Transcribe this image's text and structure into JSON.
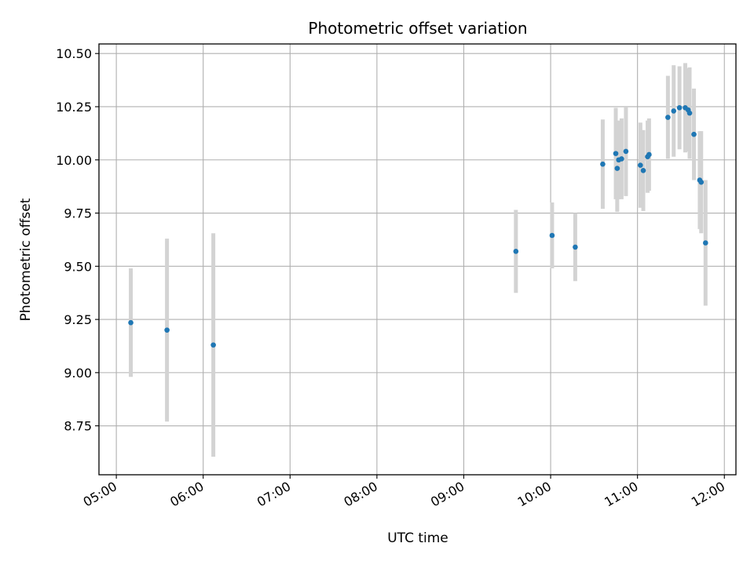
{
  "chart_data": {
    "type": "scatter",
    "title": "Photometric offset variation",
    "xlabel": "UTC time",
    "ylabel": "Photometric offset",
    "x_axis": "time",
    "xlim": [
      "04:48",
      "12:08"
    ],
    "ylim": [
      8.52,
      10.545
    ],
    "x_ticks": [
      "05:00",
      "06:00",
      "07:00",
      "08:00",
      "09:00",
      "10:00",
      "11:00",
      "12:00"
    ],
    "y_ticks": [
      "8.75",
      "9.00",
      "9.25",
      "9.50",
      "9.75",
      "10.00",
      "10.25",
      "10.50"
    ],
    "grid": true,
    "point_color": "#1f77b4",
    "errorbar_color": "#d3d3d3",
    "points": [
      {
        "x": "05:10",
        "y": 9.235,
        "err": 0.255
      },
      {
        "x": "05:35",
        "y": 9.2,
        "err": 0.43
      },
      {
        "x": "06:07",
        "y": 9.13,
        "err": 0.525
      },
      {
        "x": "09:36",
        "y": 9.57,
        "err": 0.195
      },
      {
        "x": "10:01",
        "y": 9.645,
        "err": 0.155
      },
      {
        "x": "10:17",
        "y": 9.59,
        "err": 0.16
      },
      {
        "x": "10:36",
        "y": 9.98,
        "err": 0.21
      },
      {
        "x": "10:45",
        "y": 10.03,
        "err": 0.215
      },
      {
        "x": "10:46",
        "y": 9.96,
        "err": 0.205
      },
      {
        "x": "10:47",
        "y": 10.0,
        "err": 0.185
      },
      {
        "x": "10:49",
        "y": 10.005,
        "err": 0.19
      },
      {
        "x": "10:52",
        "y": 10.04,
        "err": 0.21
      },
      {
        "x": "11:02",
        "y": 9.975,
        "err": 0.2
      },
      {
        "x": "11:04",
        "y": 9.95,
        "err": 0.19
      },
      {
        "x": "11:07",
        "y": 10.015,
        "err": 0.17
      },
      {
        "x": "11:08",
        "y": 10.025,
        "err": 0.17
      },
      {
        "x": "11:21",
        "y": 10.2,
        "err": 0.195
      },
      {
        "x": "11:25",
        "y": 10.23,
        "err": 0.215
      },
      {
        "x": "11:29",
        "y": 10.245,
        "err": 0.195
      },
      {
        "x": "11:33",
        "y": 10.245,
        "err": 0.21
      },
      {
        "x": "11:35",
        "y": 10.235,
        "err": 0.195
      },
      {
        "x": "11:36",
        "y": 10.22,
        "err": 0.215
      },
      {
        "x": "11:39",
        "y": 10.12,
        "err": 0.215
      },
      {
        "x": "11:43",
        "y": 9.905,
        "err": 0.23
      },
      {
        "x": "11:44",
        "y": 9.895,
        "err": 0.24
      },
      {
        "x": "11:47",
        "y": 9.61,
        "err": 0.295
      }
    ]
  }
}
